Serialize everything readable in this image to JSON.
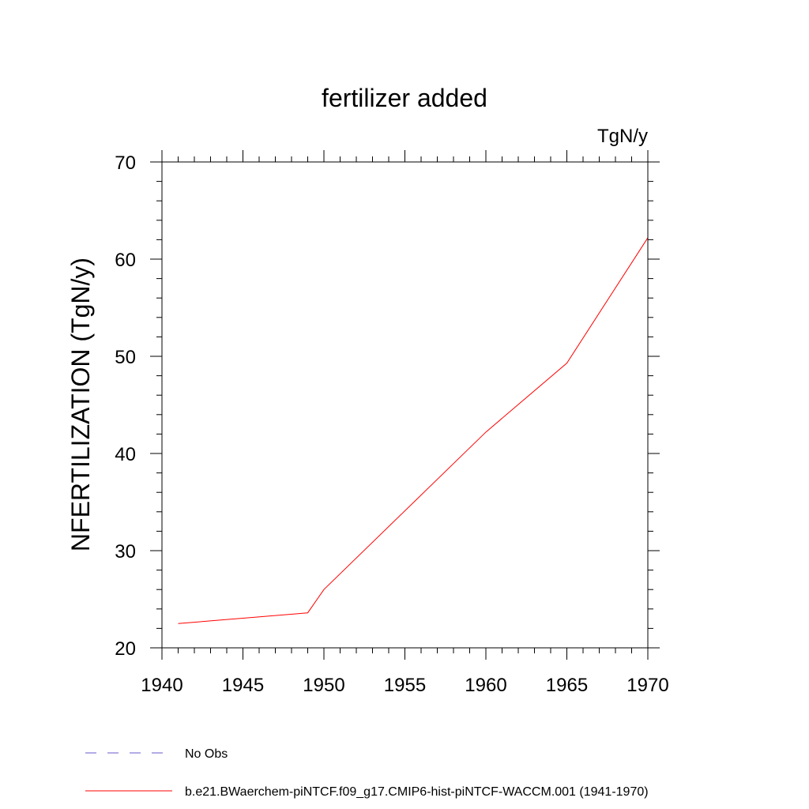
{
  "chart_data": {
    "type": "line",
    "title": "fertilizer added",
    "units_label": "TgN/y",
    "ylabel": "NFERTILIZATION  (TgN/y)",
    "xlabel": "",
    "xlim": [
      1940,
      1970
    ],
    "ylim": [
      20,
      70
    ],
    "x_ticks": [
      1940,
      1945,
      1950,
      1955,
      1960,
      1965,
      1970
    ],
    "y_ticks": [
      20,
      30,
      40,
      50,
      60,
      70
    ],
    "grid": false,
    "legend_position": "bottom",
    "series": [
      {
        "name": "b.e21.BWaerchem-piNTCF.f09_g17.CMIP6-hist-piNTCF-WACCM.001 (1941-1970)",
        "color": "#ff0000",
        "x": [
          1941,
          1949,
          1950,
          1960,
          1965,
          1970
        ],
        "y": [
          22.5,
          23.6,
          26.0,
          42.2,
          49.3,
          62.2
        ]
      }
    ],
    "legend": [
      {
        "label": "No Obs",
        "color": "#6a5acd",
        "style": "dashed"
      },
      {
        "label": "b.e21.BWaerchem-piNTCF.f09_g17.CMIP6-hist-piNTCF-WACCM.001 (1941-1970)",
        "color": "#ff0000",
        "style": "solid"
      }
    ]
  }
}
